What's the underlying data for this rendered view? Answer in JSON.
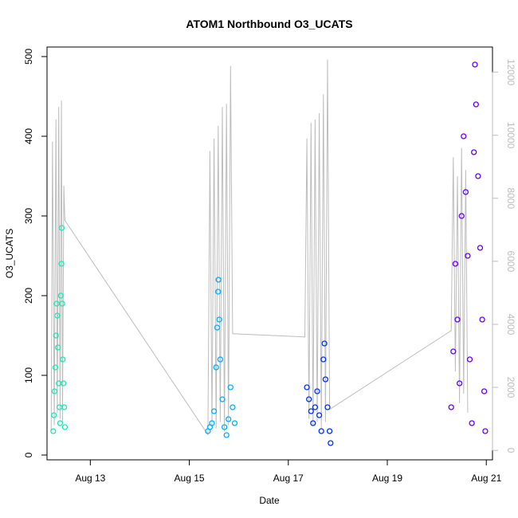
{
  "chart_data": {
    "type": "scatter",
    "title": "ATOM1 Northbound O3_UCATS",
    "xlabel": "Date",
    "ylabel": "O3_UCATS",
    "x_axis": {
      "unit": "date",
      "range": [
        "2016-08-12T03:00",
        "2016-08-21T03:00"
      ],
      "ticks": [
        {
          "value": "2016-08-13T00:00",
          "label": "Aug 13"
        },
        {
          "value": "2016-08-15T00:00",
          "label": "Aug 15"
        },
        {
          "value": "2016-08-17T00:00",
          "label": "Aug 17"
        },
        {
          "value": "2016-08-19T00:00",
          "label": "Aug 19"
        },
        {
          "value": "2016-08-21T00:00",
          "label": "Aug 21"
        }
      ]
    },
    "y_left": {
      "range": [
        -6,
        512
      ],
      "ticks": [
        0,
        100,
        200,
        300,
        400,
        500
      ],
      "tick_labels": [
        "0",
        "100",
        "200",
        "300",
        "400",
        "500"
      ]
    },
    "y_right": {
      "range": [
        -300,
        12800
      ],
      "ticks": [
        0,
        2000,
        4000,
        6000,
        8000,
        10000,
        12000
      ],
      "tick_labels": [
        "0",
        "2000",
        "4000",
        "6000",
        "8000",
        "10000",
        "12000"
      ],
      "color": "#bdbdbd"
    },
    "series": [
      {
        "color": "#1de9b6",
        "points": [
          {
            "x": "2016-08-12T06:00",
            "y": 30
          },
          {
            "x": "2016-08-12T06:20",
            "y": 50
          },
          {
            "x": "2016-08-12T06:40",
            "y": 80
          },
          {
            "x": "2016-08-12T07:00",
            "y": 110
          },
          {
            "x": "2016-08-12T07:20",
            "y": 150
          },
          {
            "x": "2016-08-12T07:40",
            "y": 190
          },
          {
            "x": "2016-08-12T08:00",
            "y": 175
          },
          {
            "x": "2016-08-12T08:20",
            "y": 135
          },
          {
            "x": "2016-08-12T08:40",
            "y": 90
          },
          {
            "x": "2016-08-12T09:00",
            "y": 60
          },
          {
            "x": "2016-08-12T09:20",
            "y": 40
          },
          {
            "x": "2016-08-12T09:40",
            "y": 200
          },
          {
            "x": "2016-08-12T10:00",
            "y": 240
          },
          {
            "x": "2016-08-12T10:10",
            "y": 285
          },
          {
            "x": "2016-08-12T10:20",
            "y": 190
          },
          {
            "x": "2016-08-12T10:40",
            "y": 120
          },
          {
            "x": "2016-08-12T11:00",
            "y": 90
          },
          {
            "x": "2016-08-12T11:20",
            "y": 60
          },
          {
            "x": "2016-08-12T11:40",
            "y": 35
          }
        ]
      },
      {
        "color": "#00b0ff",
        "points": [
          {
            "x": "2016-08-15T09:00",
            "y": 30
          },
          {
            "x": "2016-08-15T10:00",
            "y": 35
          },
          {
            "x": "2016-08-15T11:00",
            "y": 40
          },
          {
            "x": "2016-08-15T12:00",
            "y": 55
          },
          {
            "x": "2016-08-15T13:00",
            "y": 110
          },
          {
            "x": "2016-08-15T13:30",
            "y": 160
          },
          {
            "x": "2016-08-15T14:00",
            "y": 205
          },
          {
            "x": "2016-08-15T14:10",
            "y": 220
          },
          {
            "x": "2016-08-15T14:30",
            "y": 170
          },
          {
            "x": "2016-08-15T15:00",
            "y": 120
          },
          {
            "x": "2016-08-15T16:00",
            "y": 70
          },
          {
            "x": "2016-08-15T17:00",
            "y": 35
          },
          {
            "x": "2016-08-15T18:00",
            "y": 25
          },
          {
            "x": "2016-08-15T19:00",
            "y": 45
          },
          {
            "x": "2016-08-15T20:00",
            "y": 85
          },
          {
            "x": "2016-08-15T21:00",
            "y": 60
          },
          {
            "x": "2016-08-15T22:00",
            "y": 40
          }
        ]
      },
      {
        "color": "#0033ff",
        "points": [
          {
            "x": "2016-08-17T09:00",
            "y": 85
          },
          {
            "x": "2016-08-17T10:00",
            "y": 70
          },
          {
            "x": "2016-08-17T11:00",
            "y": 55
          },
          {
            "x": "2016-08-17T12:00",
            "y": 40
          },
          {
            "x": "2016-08-17T13:00",
            "y": 60
          },
          {
            "x": "2016-08-17T14:00",
            "y": 80
          },
          {
            "x": "2016-08-17T15:00",
            "y": 50
          },
          {
            "x": "2016-08-17T16:00",
            "y": 30
          },
          {
            "x": "2016-08-17T17:00",
            "y": 120
          },
          {
            "x": "2016-08-17T17:30",
            "y": 140
          },
          {
            "x": "2016-08-17T18:00",
            "y": 95
          },
          {
            "x": "2016-08-17T19:00",
            "y": 60
          },
          {
            "x": "2016-08-17T20:00",
            "y": 30
          },
          {
            "x": "2016-08-17T20:30",
            "y": 15
          }
        ]
      },
      {
        "color": "#6a00ff",
        "points": [
          {
            "x": "2016-08-20T07:00",
            "y": 60
          },
          {
            "x": "2016-08-20T08:00",
            "y": 130
          },
          {
            "x": "2016-08-20T09:00",
            "y": 240
          },
          {
            "x": "2016-08-20T10:00",
            "y": 170
          },
          {
            "x": "2016-08-20T11:00",
            "y": 90
          },
          {
            "x": "2016-08-20T12:00",
            "y": 300
          },
          {
            "x": "2016-08-20T13:00",
            "y": 400
          },
          {
            "x": "2016-08-20T14:00",
            "y": 330
          },
          {
            "x": "2016-08-20T15:00",
            "y": 250
          },
          {
            "x": "2016-08-20T16:00",
            "y": 120
          },
          {
            "x": "2016-08-20T17:00",
            "y": 40
          },
          {
            "x": "2016-08-20T18:00",
            "y": 380
          },
          {
            "x": "2016-08-20T18:30",
            "y": 490
          },
          {
            "x": "2016-08-20T19:00",
            "y": 440
          },
          {
            "x": "2016-08-20T20:00",
            "y": 350
          },
          {
            "x": "2016-08-20T21:00",
            "y": 260
          },
          {
            "x": "2016-08-20T22:00",
            "y": 170
          },
          {
            "x": "2016-08-20T23:00",
            "y": 80
          },
          {
            "x": "2016-08-20T23:30",
            "y": 30
          }
        ]
      }
    ],
    "right_axis_trace": {
      "color": "#bdbdbd",
      "points": [
        {
          "x": "2016-08-12T05:00",
          "y": 600
        },
        {
          "x": "2016-08-12T05:40",
          "y": 9800
        },
        {
          "x": "2016-08-12T06:30",
          "y": 800
        },
        {
          "x": "2016-08-12T07:20",
          "y": 10500
        },
        {
          "x": "2016-08-12T08:00",
          "y": 1200
        },
        {
          "x": "2016-08-12T08:40",
          "y": 10900
        },
        {
          "x": "2016-08-12T09:20",
          "y": 1000
        },
        {
          "x": "2016-08-12T10:00",
          "y": 11100
        },
        {
          "x": "2016-08-12T10:30",
          "y": 900
        },
        {
          "x": "2016-08-12T11:10",
          "y": 8400
        },
        {
          "x": "2016-08-12T11:40",
          "y": 7300
        },
        {
          "x": "2016-08-15T09:00",
          "y": 500
        },
        {
          "x": "2016-08-15T10:00",
          "y": 9500
        },
        {
          "x": "2016-08-15T11:00",
          "y": 800
        },
        {
          "x": "2016-08-15T12:00",
          "y": 9900
        },
        {
          "x": "2016-08-15T13:00",
          "y": 700
        },
        {
          "x": "2016-08-15T14:00",
          "y": 10300
        },
        {
          "x": "2016-08-15T15:00",
          "y": 900
        },
        {
          "x": "2016-08-15T16:00",
          "y": 10900
        },
        {
          "x": "2016-08-15T17:00",
          "y": 600
        },
        {
          "x": "2016-08-15T18:00",
          "y": 11000
        },
        {
          "x": "2016-08-15T19:00",
          "y": 800
        },
        {
          "x": "2016-08-15T20:00",
          "y": 12200
        },
        {
          "x": "2016-08-15T21:00",
          "y": 3700
        },
        {
          "x": "2016-08-17T08:00",
          "y": 3600
        },
        {
          "x": "2016-08-17T09:00",
          "y": 9900
        },
        {
          "x": "2016-08-17T10:00",
          "y": 1000
        },
        {
          "x": "2016-08-17T11:00",
          "y": 10400
        },
        {
          "x": "2016-08-17T12:00",
          "y": 800
        },
        {
          "x": "2016-08-17T13:00",
          "y": 10500
        },
        {
          "x": "2016-08-17T14:00",
          "y": 900
        },
        {
          "x": "2016-08-17T15:00",
          "y": 10700
        },
        {
          "x": "2016-08-17T16:00",
          "y": 700
        },
        {
          "x": "2016-08-17T17:00",
          "y": 11300
        },
        {
          "x": "2016-08-17T18:00",
          "y": 900
        },
        {
          "x": "2016-08-17T19:00",
          "y": 12400
        },
        {
          "x": "2016-08-17T20:00",
          "y": 1300
        },
        {
          "x": "2016-08-20T07:00",
          "y": 3800
        },
        {
          "x": "2016-08-20T08:00",
          "y": 9300
        },
        {
          "x": "2016-08-20T09:00",
          "y": 2500
        },
        {
          "x": "2016-08-20T10:00",
          "y": 8700
        },
        {
          "x": "2016-08-20T11:00",
          "y": 1500
        },
        {
          "x": "2016-08-20T12:00",
          "y": 9600
        },
        {
          "x": "2016-08-20T13:00",
          "y": 1800
        },
        {
          "x": "2016-08-20T14:00",
          "y": 8900
        },
        {
          "x": "2016-08-20T15:00",
          "y": 1200
        }
      ]
    },
    "grid": false,
    "legend": "none"
  }
}
